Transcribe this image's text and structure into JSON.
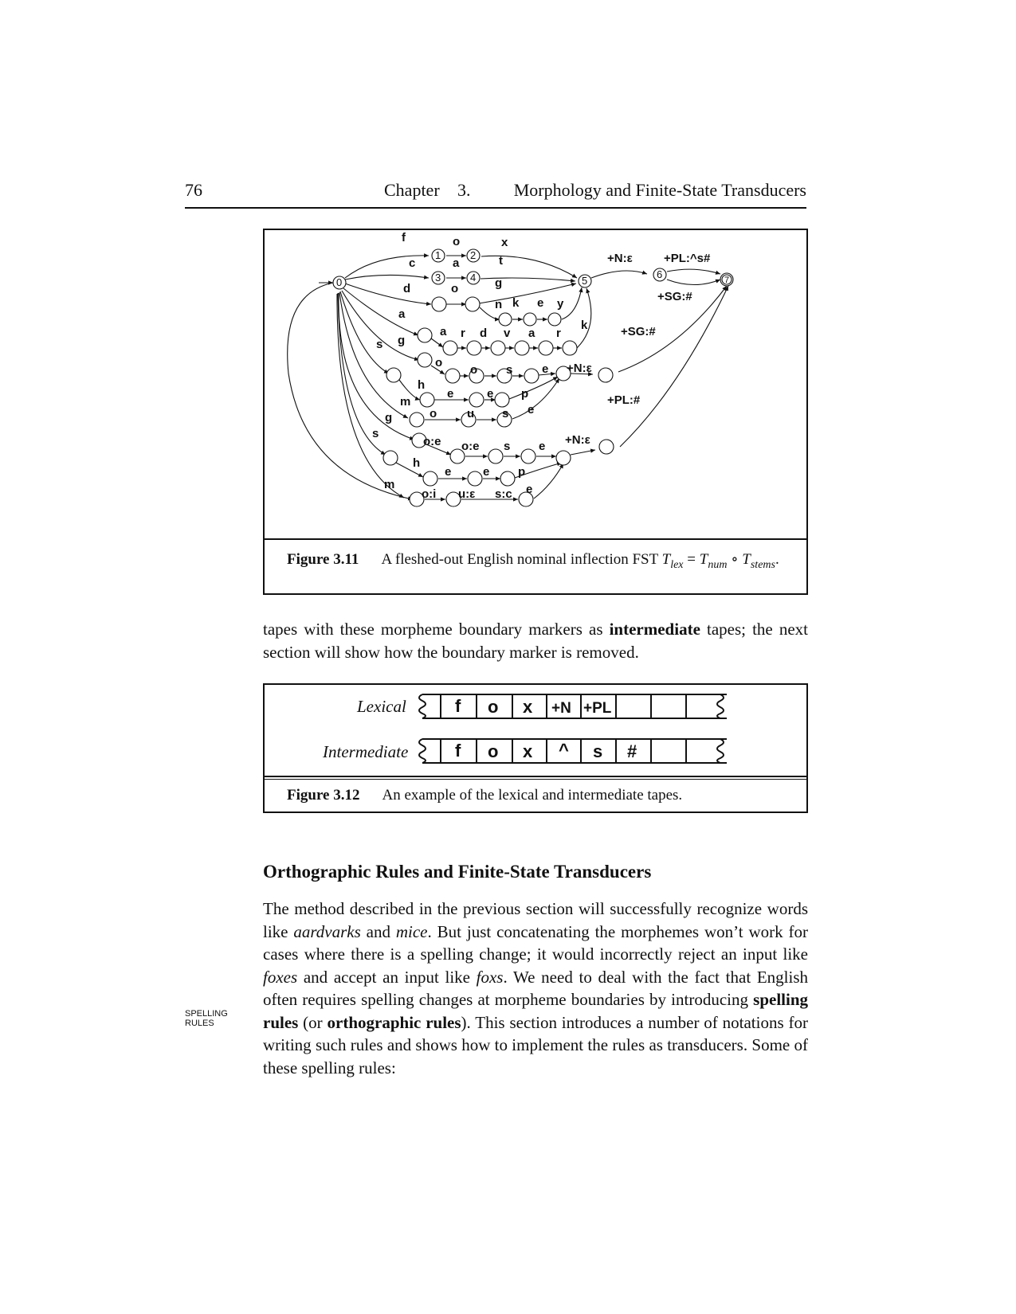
{
  "header": {
    "page_number": "76",
    "chapter_label": "Chapter",
    "chapter_number": "3.",
    "chapter_title": "Morphology and Finite-State Transducers"
  },
  "figure_3_11": {
    "label": "Figure 3.11",
    "caption_text": "A fleshed-out English nominal inflection FST",
    "formula_T1": "T",
    "formula_sub1": "lex",
    "formula_eq": " = ",
    "formula_T2": "T",
    "formula_sub2": "num",
    "formula_op": " ∘ ",
    "formula_T3": "T",
    "formula_sub3": "stems",
    "formula_end": ".",
    "states": [
      "0",
      "1",
      "2",
      "3",
      "4",
      "5",
      "6",
      "7"
    ],
    "arc_labels": {
      "fox": [
        "f",
        "o",
        "x"
      ],
      "cat": [
        "c",
        "a",
        "t"
      ],
      "dog": [
        "d",
        "o",
        "g"
      ],
      "donkey": [
        "n",
        "k",
        "e",
        "y"
      ],
      "aardvark": [
        "a",
        "a",
        "r",
        "d",
        "v",
        "a",
        "r",
        "k"
      ],
      "goose": [
        "g",
        "o",
        "o",
        "s",
        "e"
      ],
      "sheep": [
        "s",
        "h",
        "e",
        "e",
        "p"
      ],
      "mouse": [
        "m",
        "o",
        "u",
        "s",
        "e"
      ],
      "geese": [
        "g",
        "o:e",
        "o:e",
        "s",
        "e"
      ],
      "sheep_pl": [
        "s",
        "h",
        "e",
        "e",
        "p"
      ],
      "mice": [
        "m",
        "o:i",
        "u:ε",
        "s:c",
        "e"
      ],
      "regular_noun": "+N:ε",
      "regular_plural": "+PL:^s#",
      "regular_singular": "+SG:#",
      "irregular_sg_noun": "+N:ε",
      "irregular_sg": "+SG:#",
      "irregular_pl_noun": "+N:ε",
      "irregular_pl": "+PL:#"
    }
  },
  "paragraph1": {
    "text1": "tapes with these morpheme boundary markers as ",
    "bold1": "intermediate",
    "text2": " tapes; the next section will show how the boundary marker is removed."
  },
  "figure_3_12": {
    "label": "Figure 3.12",
    "caption_text": "An example of the lexical and intermediate tapes.",
    "lexical_label": "Lexical",
    "intermediate_label": "Intermediate",
    "lexical_cells": [
      "f",
      "o",
      "x",
      "+N",
      "+PL",
      "",
      "",
      ""
    ],
    "intermediate_cells": [
      "f",
      "o",
      "x",
      "^",
      "s",
      "#",
      "",
      ""
    ]
  },
  "section": {
    "heading": "Orthographic Rules and Finite-State Transducers"
  },
  "paragraph2": {
    "t1": "The method described in the previous section will successfully recognize words like ",
    "i1": "aardvarks",
    "t2": " and ",
    "i2": "mice",
    "t3": ". But just concatenating the morphemes won’t work for cases where there is a spelling change; it would incorrectly reject an input like ",
    "i3": "foxes",
    "t4": " and accept an input like ",
    "i4": "foxs",
    "t5": ". We need to deal with the fact that English often requires spelling changes at morpheme boundaries by introducing ",
    "b1": "spelling rules",
    "t6": " (or ",
    "b2": "orthographic rules",
    "t7": "). This section introduces a number of notations for writing such rules and shows how to implement the rules as transducers. Some of these spelling rules:"
  },
  "margin_note": {
    "line1": "SPELLING",
    "line2": "RULES"
  }
}
